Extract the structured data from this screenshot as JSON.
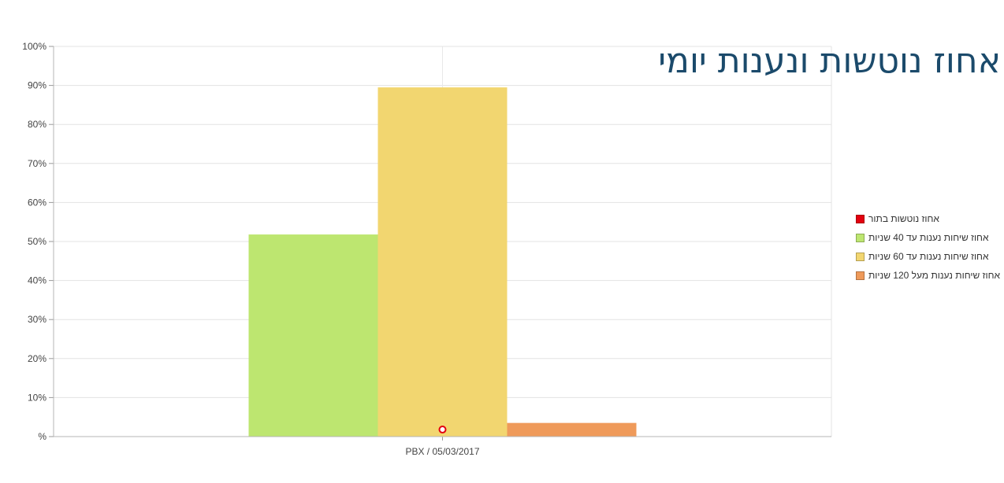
{
  "chart_data": {
    "type": "bar",
    "title": "אחוז נוטשות ונענות יומי",
    "categories": [
      "PBX / 05/03/2017"
    ],
    "series": [
      {
        "name": "אחוז נוטשות בתור",
        "values": [
          1
        ],
        "color": "#e3000f",
        "render": "marker"
      },
      {
        "name": "אחוז שיחות נענות עד 40 שניות",
        "values": [
          51.8
        ],
        "color": "#bde670",
        "render": "bar"
      },
      {
        "name": "אחוז שיחות נענות עד 60 שניות",
        "values": [
          89.5
        ],
        "color": "#f2d670",
        "render": "bar"
      },
      {
        "name": "אחוז שיחות נענות מעל 120 שניות",
        "values": [
          3.5
        ],
        "color": "#ef9a5a",
        "render": "bar"
      }
    ],
    "ylim": [
      0,
      100
    ],
    "yticks": [
      "%",
      "10%",
      "20%",
      "30%",
      "40%",
      "50%",
      "60%",
      "70%",
      "80%",
      "90%",
      "100%"
    ],
    "grid": true,
    "legend_position": "right"
  }
}
